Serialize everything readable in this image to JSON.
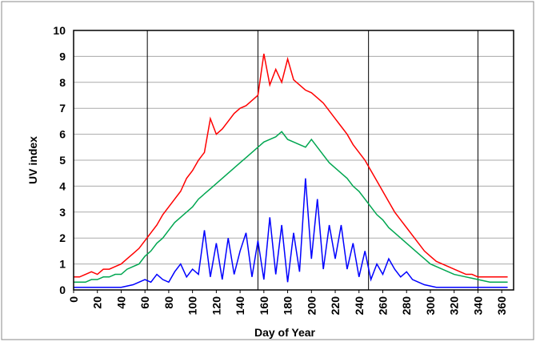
{
  "chart_data": {
    "type": "line",
    "ylabel": "UV index",
    "xlabel": "Day of Year",
    "xlim": [
      0,
      370
    ],
    "ylim": [
      0,
      10
    ],
    "xticks": [
      0,
      20,
      40,
      60,
      80,
      100,
      120,
      140,
      160,
      180,
      200,
      220,
      240,
      260,
      280,
      300,
      320,
      340,
      360
    ],
    "yticks": [
      0,
      1,
      2,
      3,
      4,
      5,
      6,
      7,
      8,
      9,
      10
    ],
    "x_gridlines": [
      62,
      155,
      248,
      340
    ],
    "grid": true,
    "x": [
      0,
      5,
      10,
      15,
      20,
      25,
      30,
      35,
      40,
      45,
      50,
      55,
      60,
      65,
      70,
      75,
      80,
      85,
      90,
      95,
      100,
      105,
      110,
      115,
      120,
      125,
      130,
      135,
      140,
      145,
      150,
      155,
      160,
      165,
      170,
      175,
      180,
      185,
      190,
      195,
      200,
      205,
      210,
      215,
      220,
      225,
      230,
      235,
      240,
      245,
      250,
      255,
      260,
      265,
      270,
      275,
      280,
      285,
      290,
      295,
      300,
      305,
      310,
      315,
      320,
      325,
      330,
      335,
      340,
      345,
      350,
      355,
      360,
      365
    ],
    "series": [
      {
        "color": "#ff0000",
        "values": [
          0.5,
          0.5,
          0.6,
          0.7,
          0.6,
          0.8,
          0.8,
          0.9,
          1.0,
          1.2,
          1.4,
          1.6,
          1.9,
          2.2,
          2.5,
          2.9,
          3.2,
          3.5,
          3.8,
          4.3,
          4.6,
          5.0,
          5.3,
          6.6,
          6.0,
          6.2,
          6.5,
          6.8,
          7.0,
          7.1,
          7.3,
          7.5,
          9.1,
          7.9,
          8.5,
          8.0,
          8.9,
          8.1,
          7.9,
          7.7,
          7.6,
          7.4,
          7.2,
          6.9,
          6.6,
          6.3,
          6.0,
          5.6,
          5.3,
          5.0,
          4.6,
          4.2,
          3.8,
          3.4,
          3.0,
          2.7,
          2.4,
          2.1,
          1.8,
          1.5,
          1.3,
          1.1,
          1.0,
          0.9,
          0.8,
          0.7,
          0.6,
          0.6,
          0.5,
          0.5,
          0.5,
          0.5,
          0.5,
          0.5
        ]
      },
      {
        "color": "#00a650",
        "values": [
          0.3,
          0.3,
          0.3,
          0.4,
          0.4,
          0.5,
          0.5,
          0.6,
          0.6,
          0.8,
          0.9,
          1.0,
          1.3,
          1.5,
          1.8,
          2.0,
          2.3,
          2.6,
          2.8,
          3.0,
          3.2,
          3.5,
          3.7,
          3.9,
          4.1,
          4.3,
          4.5,
          4.7,
          4.9,
          5.1,
          5.3,
          5.5,
          5.7,
          5.8,
          5.9,
          6.1,
          5.8,
          5.7,
          5.6,
          5.5,
          5.8,
          5.5,
          5.2,
          4.9,
          4.7,
          4.5,
          4.3,
          4.0,
          3.8,
          3.5,
          3.2,
          2.9,
          2.7,
          2.4,
          2.2,
          2.0,
          1.8,
          1.6,
          1.4,
          1.2,
          1.0,
          0.9,
          0.8,
          0.7,
          0.6,
          0.55,
          0.5,
          0.45,
          0.4,
          0.35,
          0.3,
          0.3,
          0.3,
          0.3
        ]
      },
      {
        "color": "#0000ff",
        "values": [
          0.1,
          0.1,
          0.1,
          0.1,
          0.1,
          0.1,
          0.1,
          0.1,
          0.1,
          0.15,
          0.2,
          0.3,
          0.4,
          0.3,
          0.6,
          0.4,
          0.3,
          0.7,
          1.0,
          0.5,
          0.8,
          0.6,
          2.3,
          0.5,
          1.8,
          0.4,
          2.0,
          0.6,
          1.5,
          2.2,
          0.5,
          1.9,
          0.4,
          2.8,
          0.6,
          2.5,
          0.3,
          2.2,
          0.7,
          4.3,
          1.2,
          3.5,
          0.8,
          2.5,
          1.2,
          2.5,
          0.8,
          1.8,
          0.5,
          1.5,
          0.4,
          1.0,
          0.6,
          1.2,
          0.8,
          0.5,
          0.7,
          0.4,
          0.3,
          0.2,
          0.15,
          0.1,
          0.1,
          0.1,
          0.1,
          0.1,
          0.1,
          0.1,
          0.1,
          0.1,
          0.1,
          0.1,
          0.1,
          0.1
        ]
      }
    ]
  }
}
